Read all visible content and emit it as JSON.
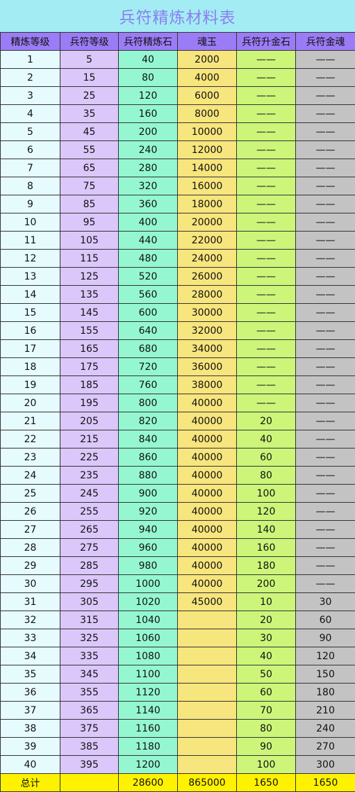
{
  "title": "兵符精炼材料表",
  "headers": [
    "精炼等级",
    "兵符等级",
    "兵符精炼石",
    "魂玉",
    "兵符升金石",
    "兵符金魂"
  ],
  "rows": [
    [
      "1",
      "5",
      "40",
      "2000",
      "——",
      "——"
    ],
    [
      "2",
      "15",
      "80",
      "4000",
      "——",
      "——"
    ],
    [
      "3",
      "25",
      "120",
      "6000",
      "——",
      "——"
    ],
    [
      "4",
      "35",
      "160",
      "8000",
      "——",
      "——"
    ],
    [
      "5",
      "45",
      "200",
      "10000",
      "——",
      "——"
    ],
    [
      "6",
      "55",
      "240",
      "12000",
      "——",
      "——"
    ],
    [
      "7",
      "65",
      "280",
      "14000",
      "——",
      "——"
    ],
    [
      "8",
      "75",
      "320",
      "16000",
      "——",
      "——"
    ],
    [
      "9",
      "85",
      "360",
      "18000",
      "——",
      "——"
    ],
    [
      "10",
      "95",
      "400",
      "20000",
      "——",
      "——"
    ],
    [
      "11",
      "105",
      "440",
      "22000",
      "——",
      "——"
    ],
    [
      "12",
      "115",
      "480",
      "24000",
      "——",
      "——"
    ],
    [
      "13",
      "125",
      "520",
      "26000",
      "——",
      "——"
    ],
    [
      "14",
      "135",
      "560",
      "28000",
      "——",
      "——"
    ],
    [
      "15",
      "145",
      "600",
      "30000",
      "——",
      "——"
    ],
    [
      "16",
      "155",
      "640",
      "32000",
      "——",
      "——"
    ],
    [
      "17",
      "165",
      "680",
      "34000",
      "——",
      "——"
    ],
    [
      "18",
      "175",
      "720",
      "36000",
      "——",
      "——"
    ],
    [
      "19",
      "185",
      "760",
      "38000",
      "——",
      "——"
    ],
    [
      "20",
      "195",
      "800",
      "40000",
      "——",
      "——"
    ],
    [
      "21",
      "205",
      "820",
      "40000",
      "20",
      "——"
    ],
    [
      "22",
      "215",
      "840",
      "40000",
      "40",
      "——"
    ],
    [
      "23",
      "225",
      "860",
      "40000",
      "60",
      "——"
    ],
    [
      "24",
      "235",
      "880",
      "40000",
      "80",
      "——"
    ],
    [
      "25",
      "245",
      "900",
      "40000",
      "100",
      "——"
    ],
    [
      "26",
      "255",
      "920",
      "40000",
      "120",
      "——"
    ],
    [
      "27",
      "265",
      "940",
      "40000",
      "140",
      "——"
    ],
    [
      "28",
      "275",
      "960",
      "40000",
      "160",
      "——"
    ],
    [
      "29",
      "285",
      "980",
      "40000",
      "180",
      "——"
    ],
    [
      "30",
      "295",
      "1000",
      "40000",
      "200",
      "——"
    ],
    [
      "31",
      "305",
      "1020",
      "45000",
      "10",
      "30"
    ],
    [
      "32",
      "315",
      "1040",
      "",
      "20",
      "60"
    ],
    [
      "33",
      "325",
      "1060",
      "",
      "30",
      "90"
    ],
    [
      "34",
      "335",
      "1080",
      "",
      "40",
      "120"
    ],
    [
      "35",
      "345",
      "1100",
      "",
      "50",
      "150"
    ],
    [
      "36",
      "355",
      "1120",
      "",
      "60",
      "180"
    ],
    [
      "37",
      "365",
      "1140",
      "",
      "70",
      "210"
    ],
    [
      "38",
      "375",
      "1160",
      "",
      "80",
      "240"
    ],
    [
      "39",
      "385",
      "1180",
      "",
      "90",
      "270"
    ],
    [
      "40",
      "395",
      "1200",
      "",
      "100",
      "300"
    ]
  ],
  "footer": [
    "总计",
    "",
    "28600",
    "865000",
    "1650",
    "1650"
  ],
  "colors": {
    "title_bg": "#a4ecf4",
    "title_text": "#8a7ff0",
    "header_bg": "#9b7cf6",
    "col_level": "#e6fbfd",
    "col_fu_level": "#dcc7fb",
    "col_stone": "#94f7d2",
    "col_soul_jade": "#f7e57d",
    "col_gold_stone": "#ccf57a",
    "col_gold_soul": "#c3c3c3",
    "footer_bg": "#fff200",
    "watermark": "#c0392b"
  },
  "watermark_icon": "red-seal-stamp"
}
